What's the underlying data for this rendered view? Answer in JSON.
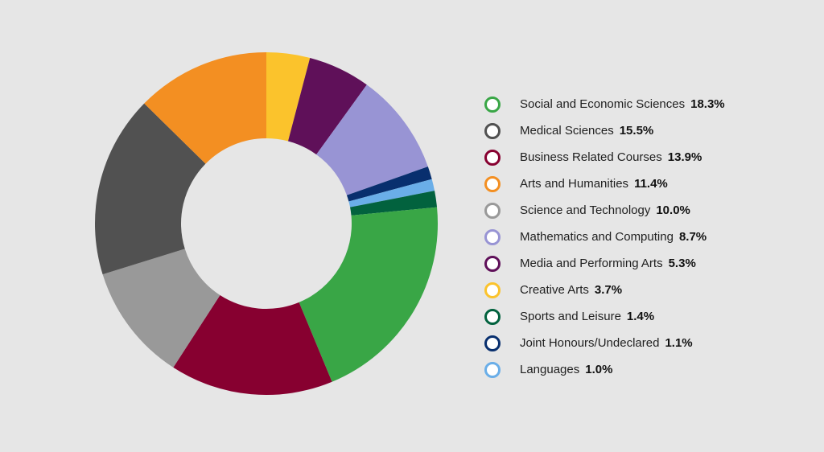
{
  "chart_data": {
    "type": "pie",
    "variant": "donut",
    "legend_position": "right",
    "start": "top, clockwise",
    "unit": "%",
    "slices": [
      {
        "label": "Creative Arts",
        "value": 3.7,
        "display": "3.7%",
        "color": "#fbc32c"
      },
      {
        "label": "Media and Performing Arts",
        "value": 5.3,
        "display": "5.3%",
        "color": "#5f1059"
      },
      {
        "label": "Mathematics and Computing",
        "value": 8.7,
        "display": "8.7%",
        "color": "#9894d4"
      },
      {
        "label": "Joint Honours/Undeclared",
        "value": 1.1,
        "display": "1.1%",
        "color": "#082f6e"
      },
      {
        "label": "Languages",
        "value": 1.0,
        "display": "1.0%",
        "color": "#6aaee8"
      },
      {
        "label": "Sports and Leisure",
        "value": 1.4,
        "display": "1.4%",
        "color": "#02623e"
      },
      {
        "label": "Social and Economic Sciences",
        "value": 18.3,
        "display": "18.3%",
        "color": "#39a646"
      },
      {
        "label": "Business Related Courses",
        "value": 13.9,
        "display": "13.9%",
        "color": "#870030"
      },
      {
        "label": "Science and Technology",
        "value": 10.0,
        "display": "10.0%",
        "color": "#999999"
      },
      {
        "label": "Medical Sciences",
        "value": 15.5,
        "display": "15.5%",
        "color": "#515151"
      },
      {
        "label": "Arts and Humanities",
        "value": 11.4,
        "display": "11.4%",
        "color": "#f38f22"
      }
    ],
    "legend_order": [
      "Social and Economic Sciences",
      "Medical Sciences",
      "Business Related Courses",
      "Arts and Humanities",
      "Science and Technology",
      "Mathematics and Computing",
      "Media and Performing Arts",
      "Creative Arts",
      "Sports and Leisure",
      "Joint Honours/Undeclared",
      "Languages"
    ]
  }
}
